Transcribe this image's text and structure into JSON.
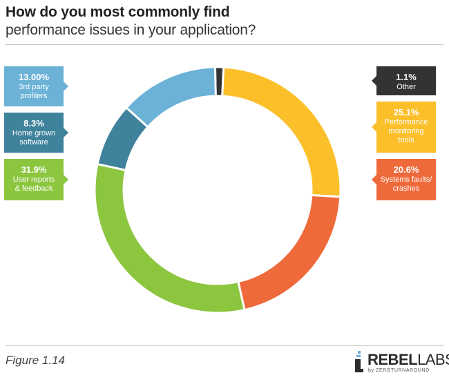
{
  "title": "How do you most commonly find",
  "subtitle": "performance issues in your application?",
  "figure_label": "Figure 1.14",
  "logo": {
    "main_bold": "REBEL",
    "main_light": "LABS",
    "sub": "by ZEROTURNAROUND"
  },
  "chart_data": {
    "type": "pie",
    "variant": "donut",
    "title": "How do you most commonly find performance issues in your application?",
    "unit": "%",
    "slices": [
      {
        "label": "Other",
        "value": 1.1,
        "display": "1.1%",
        "color": "#333333"
      },
      {
        "label": "Performance monitoring tools",
        "value": 25.1,
        "display": "25.1%",
        "color": "#fbbf2a"
      },
      {
        "label": "Systems faults/ crashes",
        "value": 20.6,
        "display": "20.6%",
        "color": "#ef6a3b"
      },
      {
        "label": "User reports & feedback",
        "value": 31.9,
        "display": "31.9%",
        "color": "#8cc63f"
      },
      {
        "label": "Home grown software",
        "value": 8.3,
        "display": "8.3%",
        "color": "#3f829c"
      },
      {
        "label": "3rd party profilers",
        "value": 13.0,
        "display": "13.00%",
        "color": "#6bb2d6"
      }
    ],
    "legend_placement": "sides"
  },
  "cards": {
    "profilers": {
      "pct": "13.00%",
      "label": "3rd party\nprofilers",
      "color": "#6bb2d6"
    },
    "homegrown": {
      "pct": "8.3%",
      "label": "Home grown\nsoftware",
      "color": "#3f829c"
    },
    "user": {
      "pct": "31.9%",
      "label": "User reports\n& feedback",
      "color": "#8cc63f"
    },
    "other": {
      "pct": "1.1%",
      "label": "Other",
      "color": "#333333"
    },
    "perf": {
      "pct": "25.1%",
      "label": "Performance\nmonitoring\ntools",
      "color": "#fbbf2a"
    },
    "faults": {
      "pct": "20.6%",
      "label": "Systems faults/\ncrashes",
      "color": "#ef6a3b"
    }
  }
}
